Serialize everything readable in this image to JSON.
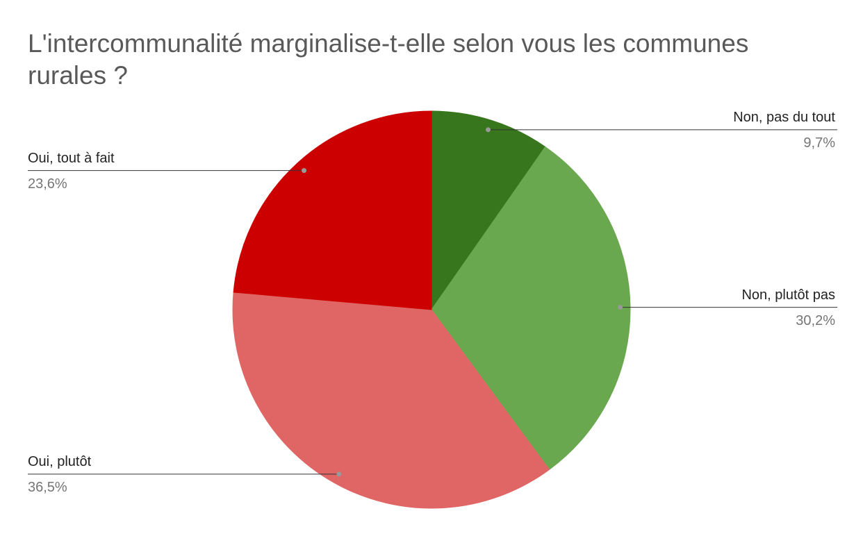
{
  "chart_data": {
    "type": "pie",
    "title": "L'intercommunalité marginalise-t-elle selon vous les communes rurales ?",
    "categories": [
      "Non, pas du tout",
      "Non, plutôt pas",
      "Oui, plutôt",
      "Oui, tout à fait"
    ],
    "values": [
      9.7,
      30.2,
      36.5,
      23.6
    ],
    "value_labels": [
      "9,7%",
      "30,2%",
      "36,5%",
      "23,6%"
    ],
    "colors": [
      "#38761d",
      "#6aa84f",
      "#e06666",
      "#cc0000"
    ]
  }
}
